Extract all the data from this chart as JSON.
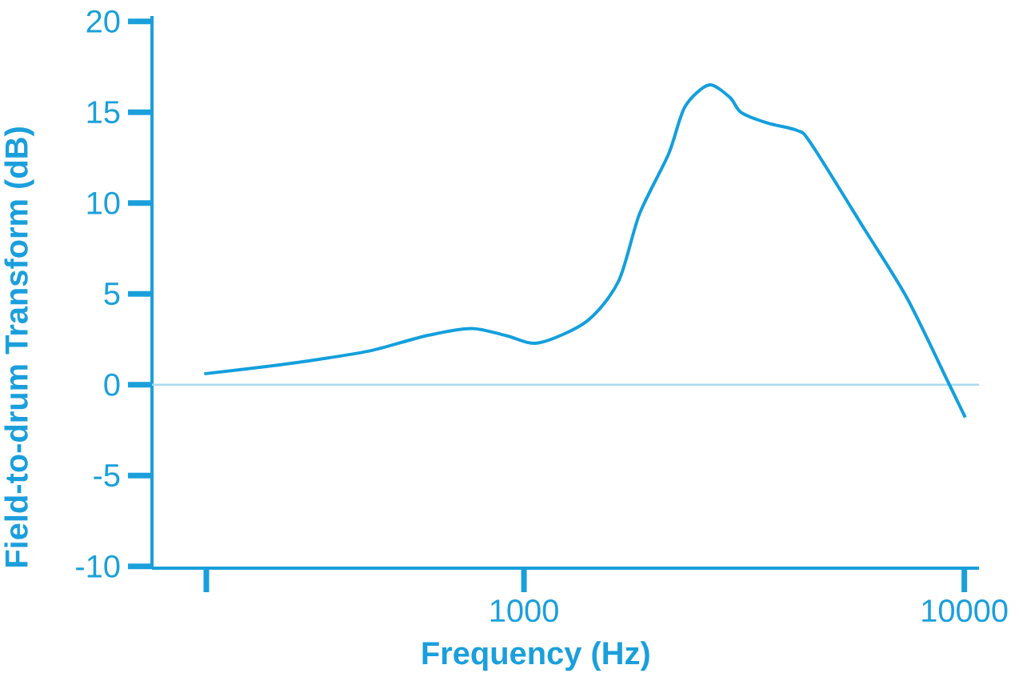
{
  "chart_data": {
    "type": "line",
    "xlabel": "Frequency (Hz)",
    "ylabel": "Field-to-drum Transform (dB)",
    "x": [
      188,
      260,
      343,
      454,
      600,
      760,
      912,
      1080,
      1390,
      1640,
      1830,
      2130,
      2320,
      2630,
      2940,
      3110,
      3580,
      4170,
      4480,
      5920,
      7400,
      9250,
      10050
    ],
    "series": [
      {
        "color": "#139fdd",
        "values": [
          0.6,
          1.0,
          1.4,
          1.9,
          2.7,
          3.1,
          2.7,
          2.3,
          3.5,
          5.7,
          9.4,
          12.7,
          15.3,
          16.5,
          15.8,
          15.0,
          14.4,
          14.0,
          13.3,
          8.6,
          4.8,
          0.0,
          -1.8
        ]
      }
    ],
    "log": "x",
    "xlim": [
      143,
      10800
    ],
    "ylim": [
      -10.1,
      20.3
    ],
    "xticks": [
      {
        "value": 190,
        "label": null
      },
      1000,
      10000
    ],
    "yticks": [
      -10,
      -5,
      0,
      5,
      10,
      15,
      20
    ],
    "ref_lines": [
      {
        "axis": "y",
        "value": 0,
        "color": "#a9daf2"
      }
    ],
    "line_style": "solid"
  }
}
